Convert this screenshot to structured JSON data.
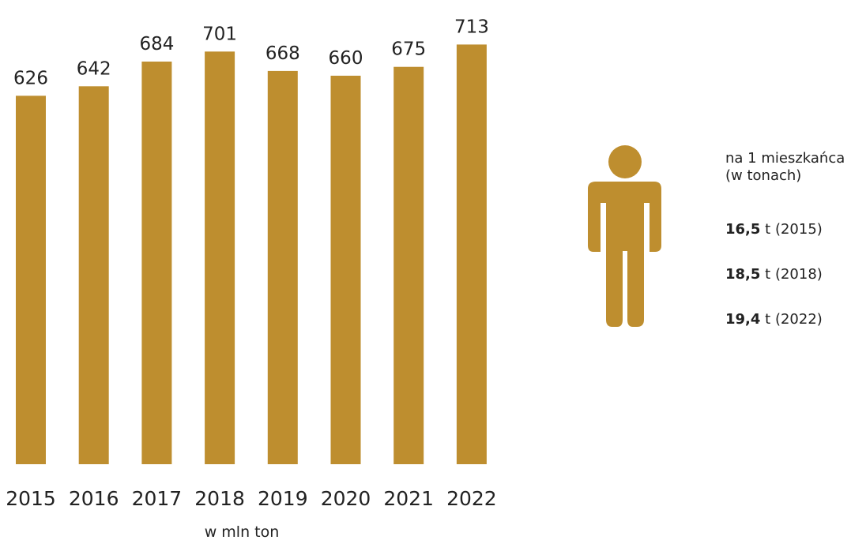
{
  "colors": {
    "bar": "#BE8E2F",
    "icon": "#BE8E2F",
    "text": "#222222"
  },
  "chart_data": {
    "type": "bar",
    "categories": [
      "2015",
      "2016",
      "2017",
      "2018",
      "2019",
      "2020",
      "2021",
      "2022"
    ],
    "values": [
      626,
      642,
      684,
      701,
      668,
      660,
      675,
      713
    ],
    "xlabel": "w mln ton",
    "ylabel": "",
    "ylim": [
      0,
      713
    ],
    "data_labels": [
      "626",
      "642",
      "684",
      "701",
      "668",
      "660",
      "675",
      "713"
    ],
    "grid": false,
    "legend": "none"
  },
  "per_capita": {
    "icon": "person-icon",
    "heading_line1": "na 1 mieszkańca",
    "heading_line2": "(w tonach)",
    "entries": [
      {
        "value": "16,5",
        "unit": " t",
        "year": "(2015)"
      },
      {
        "value": "18,5",
        "unit": " t",
        "year": "(2018)"
      },
      {
        "value": "19,4",
        "unit": " t",
        "year": "(2022)"
      }
    ]
  }
}
